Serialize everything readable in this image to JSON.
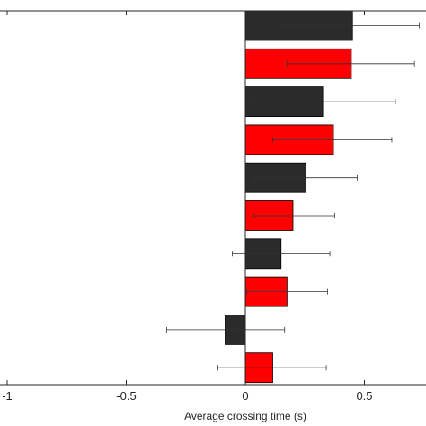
{
  "chart_data": {
    "type": "bar",
    "orientation": "horizontal",
    "title": "",
    "xlabel": "Average crossing time (s)",
    "ylabel": "",
    "xlim": [
      -1.05,
      0.75
    ],
    "xticks": [
      -1,
      -0.5,
      0,
      0.5
    ],
    "xtick_labels": [
      "-1",
      "-0.5",
      "0",
      "0.5"
    ],
    "grid": false,
    "legend": "none",
    "colors": {
      "dark": "#2b2b2b",
      "red": "#ff0000",
      "axis": "#262626",
      "bar_edge": "#000000"
    },
    "bars": [
      {
        "value": 0.45,
        "err_low": 0.165,
        "err_high": 0.73,
        "color": "dark"
      },
      {
        "value": 0.445,
        "err_low": 0.175,
        "err_high": 0.71,
        "color": "red"
      },
      {
        "value": 0.325,
        "err_low": 0.02,
        "err_high": 0.63,
        "color": "dark"
      },
      {
        "value": 0.37,
        "err_low": 0.115,
        "err_high": 0.615,
        "color": "red"
      },
      {
        "value": 0.255,
        "err_low": 0.04,
        "err_high": 0.47,
        "color": "dark"
      },
      {
        "value": 0.2,
        "err_low": 0.035,
        "err_high": 0.375,
        "color": "red"
      },
      {
        "value": 0.15,
        "err_low": -0.055,
        "err_high": 0.355,
        "color": "dark"
      },
      {
        "value": 0.175,
        "err_low": 0.005,
        "err_high": 0.345,
        "color": "red"
      },
      {
        "value": -0.085,
        "err_low": -0.33,
        "err_high": 0.165,
        "color": "dark"
      },
      {
        "value": 0.115,
        "err_low": -0.115,
        "err_high": 0.34,
        "color": "red"
      }
    ]
  }
}
